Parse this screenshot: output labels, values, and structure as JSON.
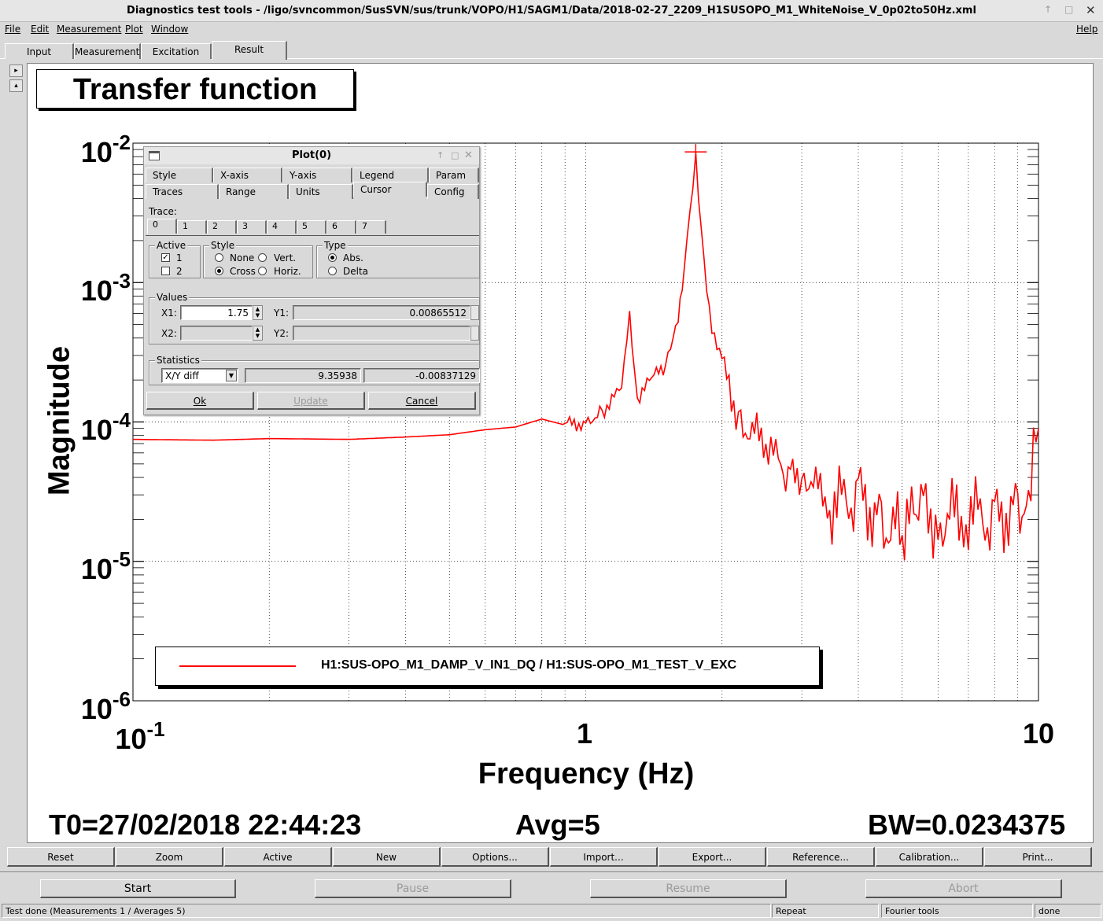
{
  "window": {
    "title": "Diagnostics test tools - /ligo/svncommon/SusSVN/sus/trunk/VOPO/H1/SAGM1/Data/2018-02-27_2209_H1SUSOPO_M1_WhiteNoise_V_0p02to50Hz.xml",
    "controls": [
      "↑",
      "□",
      "✕"
    ]
  },
  "menu": {
    "items": [
      "File",
      "Edit",
      "Measurement",
      "Plot",
      "Window"
    ],
    "help": "Help"
  },
  "tabs": [
    "Input",
    "Measurement",
    "Excitation",
    "Result"
  ],
  "side_buttons": [
    "▸",
    "▴"
  ],
  "graph": {
    "title": "Transfer function",
    "ylabel": "Magnitude",
    "xlabel": "Frequency (Hz)",
    "yticks": [
      {
        "base": "10",
        "exp": "-2"
      },
      {
        "base": "10",
        "exp": "-3"
      },
      {
        "base": "10",
        "exp": "-4"
      },
      {
        "base": "10",
        "exp": "-5"
      },
      {
        "base": "10",
        "exp": "-6"
      }
    ],
    "xticks": [
      {
        "base": "10",
        "exp": "-1"
      },
      {
        "base": "1",
        "exp": ""
      },
      {
        "base": "10",
        "exp": ""
      }
    ],
    "legend": "H1:SUS-OPO_M1_DAMP_V_IN1_DQ / H1:SUS-OPO_M1_TEST_V_EXC",
    "t0": "T0=27/02/2018 22:44:23",
    "avg": "Avg=5",
    "bw": "BW=0.0234375",
    "trace_color": "#ff0000"
  },
  "chart_data": {
    "type": "line",
    "title": "Transfer function",
    "xlabel": "Frequency (Hz)",
    "ylabel": "Magnitude",
    "xscale": "log",
    "yscale": "log",
    "xlim": [
      0.1,
      10
    ],
    "ylim": [
      1e-06,
      0.01
    ],
    "grid": true,
    "legend_placement": "bottom-left",
    "cursor": {
      "x": 1.75,
      "y": 0.00865512
    },
    "series": [
      {
        "name": "H1:SUS-OPO_M1_DAMP_V_IN1_DQ / H1:SUS-OPO_M1_TEST_V_EXC",
        "color": "#ff0000",
        "x": [
          0.1,
          0.15,
          0.2,
          0.3,
          0.4,
          0.5,
          0.6,
          0.7,
          0.8,
          0.9,
          1.0,
          1.1,
          1.2,
          1.25,
          1.3,
          1.4,
          1.5,
          1.6,
          1.65,
          1.7,
          1.75,
          1.8,
          1.85,
          1.9,
          2.0,
          2.2,
          2.5,
          2.8,
          3.0,
          3.5,
          4.0,
          4.5,
          5.0,
          5.5,
          6.0,
          7.0,
          8.0,
          9.0,
          9.5,
          10.0
        ],
        "y": [
          7.5e-05,
          7.4e-05,
          7.6e-05,
          7.5e-05,
          7.8e-05,
          8.1e-05,
          8.8e-05,
          9.2e-05,
          0.000105,
          9.5e-05,
          0.0001,
          0.000125,
          0.00017,
          0.00056,
          0.00015,
          0.0002,
          0.00026,
          0.0006,
          0.0012,
          0.003,
          0.0086,
          0.0023,
          0.0009,
          0.0005,
          0.00025,
          0.0001,
          7e-05,
          4e-05,
          4.5e-05,
          2.5e-05,
          3e-05,
          2e-05,
          1.5e-05,
          2.5e-05,
          2e-05,
          2.2e-05,
          2e-05,
          2.5e-05,
          3e-05,
          9e-05
        ]
      }
    ]
  },
  "dialog": {
    "title": "Plot(0)",
    "controls": [
      "↑",
      "□",
      "✕"
    ],
    "tabs_row1": [
      "Style",
      "X-axis",
      "Y-axis",
      "Legend",
      "Param"
    ],
    "tabs_row2": [
      "Traces",
      "Range",
      "Units",
      "Cursor",
      "Config"
    ],
    "trace_label": "Trace:",
    "trace_tabs": [
      "0",
      "1",
      "2",
      "3",
      "4",
      "5",
      "6",
      "7"
    ],
    "active": {
      "label": "Active",
      "opt1": "1",
      "opt2": "2"
    },
    "style": {
      "label": "Style",
      "none": "None",
      "vert": "Vert.",
      "cross": "Cross",
      "horiz": "Horiz."
    },
    "type": {
      "label": "Type",
      "abs": "Abs.",
      "delta": "Delta"
    },
    "values": {
      "label": "Values",
      "x1_label": "X1:",
      "x1": "1.75",
      "y1_label": "Y1:",
      "y1": "0.00865512",
      "x2_label": "X2:",
      "x2": "",
      "y2_label": "Y2:",
      "y2": ""
    },
    "statistics": {
      "label": "Statistics",
      "select": "X/Y diff",
      "v1": "9.35938",
      "v2": "-0.00837129"
    },
    "buttons": {
      "ok": "Ok",
      "update": "Update",
      "cancel": "Cancel"
    }
  },
  "plot_buttons": [
    "Reset",
    "Zoom",
    "Active",
    "New",
    "Options...",
    "Import...",
    "Export...",
    "Reference...",
    "Calibration...",
    "Print..."
  ],
  "control_buttons": {
    "start": "Start",
    "pause": "Pause",
    "resume": "Resume",
    "abort": "Abort"
  },
  "status": {
    "message": "Test done (Measurements 1 / Averages 5)",
    "repeat": "Repeat",
    "fourier": "Fourier tools",
    "done": "done"
  }
}
